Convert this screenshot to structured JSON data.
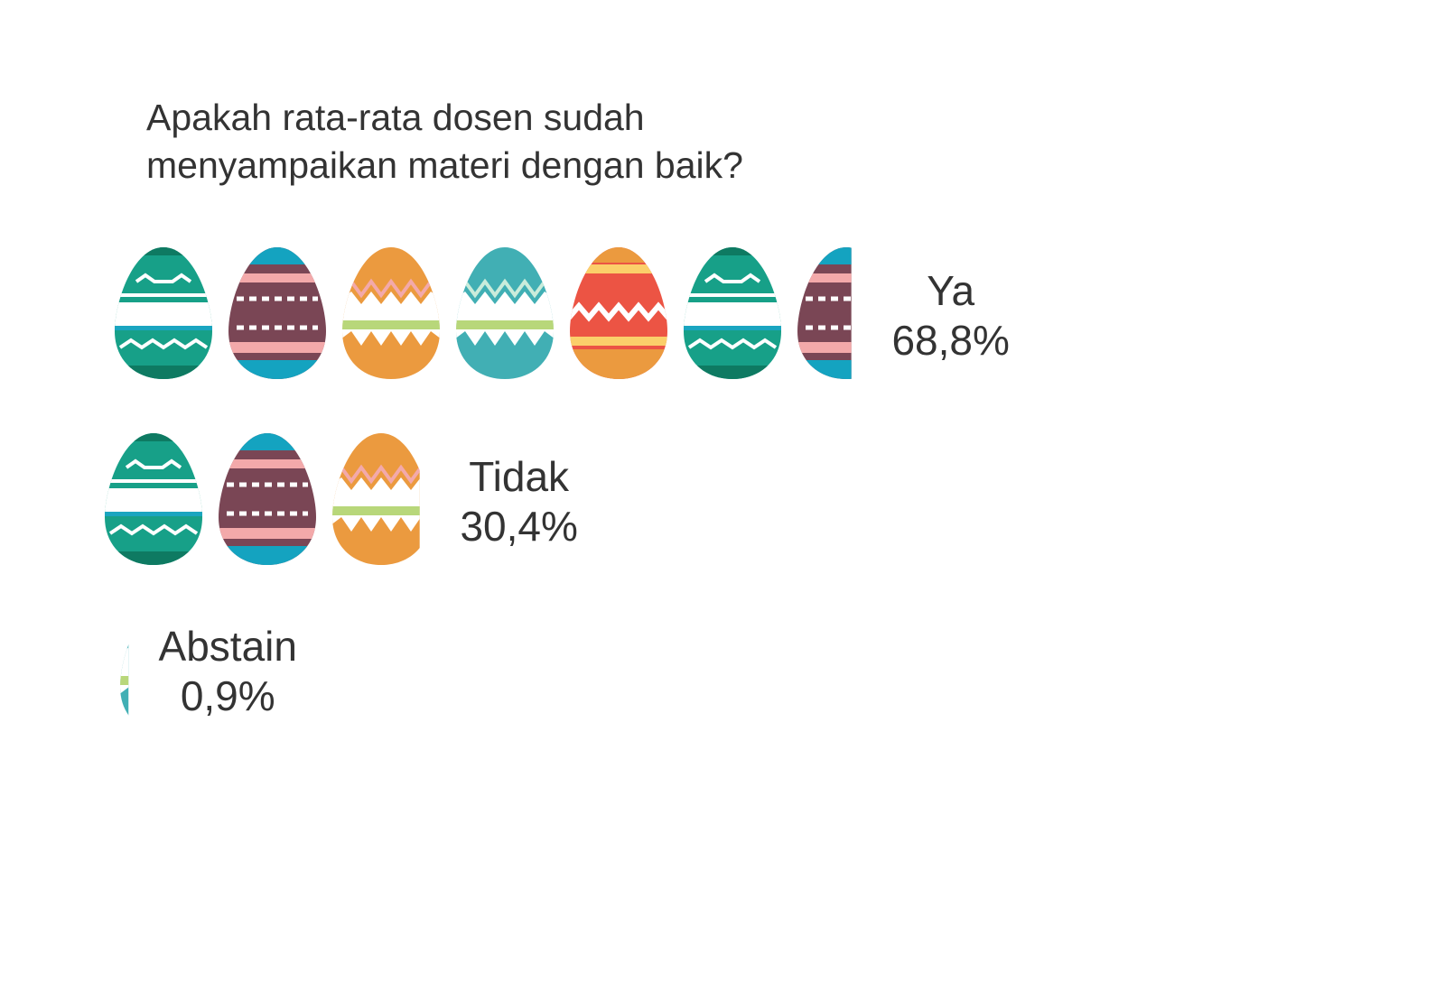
{
  "chart_data": {
    "type": "pictograph",
    "title": "Apakah rata-rata dosen sudah menyampaikan materi dengan baik?",
    "categories": [
      "Ya",
      "Tidak",
      "Abstain"
    ],
    "values": [
      68.8,
      30.4,
      0.9
    ],
    "value_labels": [
      "68,8%",
      "30,4%",
      "0,9%"
    ]
  }
}
